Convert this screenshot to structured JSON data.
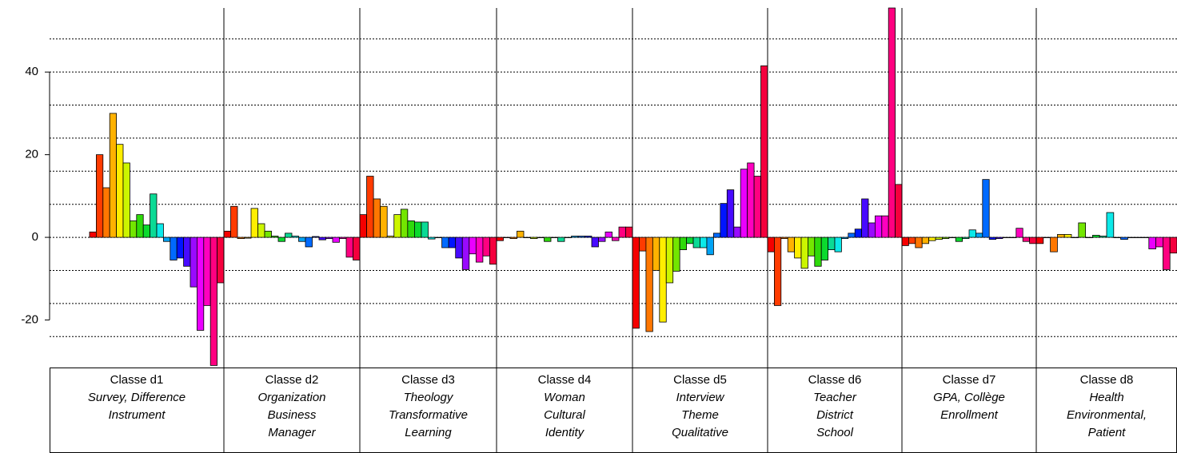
{
  "chart_data": {
    "type": "grouped-bar",
    "ylim": [
      -31.5,
      55.5
    ],
    "yticks": [
      -20,
      0,
      20,
      40
    ],
    "grid_lines": [
      -24,
      -16,
      -8,
      0,
      8,
      16,
      24,
      32,
      40,
      48
    ],
    "colors": [
      "hsl(0,100%,48%)",
      "hsl(14,100%,50%)",
      "hsl(28,100%,50%)",
      "hsl(42,100%,50%)",
      "hsl(56,100%,50%)",
      "hsl(70,100%,48%)",
      "hsl(90,100%,45%)",
      "hsl(110,90%,45%)",
      "hsl(130,90%,45%)",
      "hsl(160,90%,45%)",
      "hsl(180,90%,48%)",
      "hsl(200,100%,48%)",
      "hsl(215,100%,50%)",
      "hsl(235,100%,50%)",
      "hsl(255,100%,52%)",
      "hsl(275,100%,52%)",
      "hsl(295,100%,50%)",
      "hsl(315,100%,50%)",
      "hsl(330,100%,50%)",
      "hsl(345,100%,48%)"
    ],
    "groups": [
      {
        "name": "Classe d1",
        "keywords": [
          "Survey, Difference",
          "Instrument"
        ],
        "values": [
          1.3,
          20,
          12,
          30,
          22.5,
          18,
          4,
          5.5,
          3,
          10.5,
          3.3,
          -1,
          -5.5,
          -5,
          -7,
          -12,
          -22.5,
          -16.5,
          -31,
          -11
        ]
      },
      {
        "name": "Classe d2",
        "keywords": [
          "Organization",
          "Business",
          "Manager"
        ],
        "values": [
          1.5,
          7.5,
          -0.3,
          -0.2,
          7,
          3.3,
          1.5,
          0.3,
          -1,
          1,
          0.3,
          -1,
          -2.3,
          0.2,
          -0.6,
          -0.3,
          -1.2,
          -0.3,
          -4.8,
          -5.5
        ]
      },
      {
        "name": "Classe d3",
        "keywords": [
          "Theology",
          "Transformative",
          "Learning"
        ],
        "values": [
          5.5,
          14.8,
          9.3,
          7.5,
          0.3,
          5.5,
          6.8,
          4,
          3.7,
          3.7,
          -0.4,
          0,
          -2.5,
          -2.5,
          -5,
          -7.8,
          -4,
          -6,
          -4.5,
          -6.5
        ]
      },
      {
        "name": "Classe d4",
        "keywords": [
          "Woman",
          "Cultural",
          "Identity"
        ],
        "values": [
          -0.8,
          0,
          -0.3,
          1.5,
          0,
          -0.3,
          0,
          -1,
          0,
          -1,
          0,
          0.3,
          0.3,
          0.3,
          -2.3,
          -1,
          1.3,
          -0.8,
          2.5,
          2.5
        ]
      },
      {
        "name": "Classe d5",
        "keywords": [
          "Interview",
          "Theme",
          "Qualitative"
        ],
        "values": [
          -22,
          -3.3,
          -22.8,
          -8,
          -20.5,
          -11,
          -8.2,
          -3,
          -1.5,
          -2.5,
          -2.5,
          -4.2,
          1,
          8.2,
          11.5,
          2.5,
          16.5,
          18,
          14.8,
          41.5
        ]
      },
      {
        "name": "Classe d6",
        "keywords": [
          "Teacher",
          "District",
          "School"
        ],
        "values": [
          -3.5,
          -16.5,
          -0.3,
          -3.5,
          -5,
          -7.5,
          -4.5,
          -7,
          -5.5,
          -3,
          -3.5,
          -0.3,
          1,
          2,
          9.3,
          3.5,
          5.2,
          5.2,
          55.5,
          12.8
        ]
      },
      {
        "name": "Classe d7",
        "keywords": [
          "GPA, Collège",
          "Enrollment"
        ],
        "values": [
          -2,
          -1.5,
          -2.5,
          -1.5,
          -0.8,
          -0.5,
          -0.3,
          0,
          -1,
          -0.3,
          1.8,
          1,
          14,
          -0.5,
          -0.3,
          0,
          0,
          2.2,
          -1,
          -1.5
        ]
      },
      {
        "name": "Classe d8",
        "keywords": [
          "Health",
          "Environmental,",
          "Patient"
        ],
        "values": [
          -1.5,
          0,
          -3.5,
          0.7,
          0.7,
          0,
          3.5,
          0,
          0.5,
          0.3,
          6,
          0,
          -0.5,
          0,
          0,
          0,
          -2.8,
          -2.3,
          -7.8,
          -3.8
        ]
      }
    ]
  }
}
